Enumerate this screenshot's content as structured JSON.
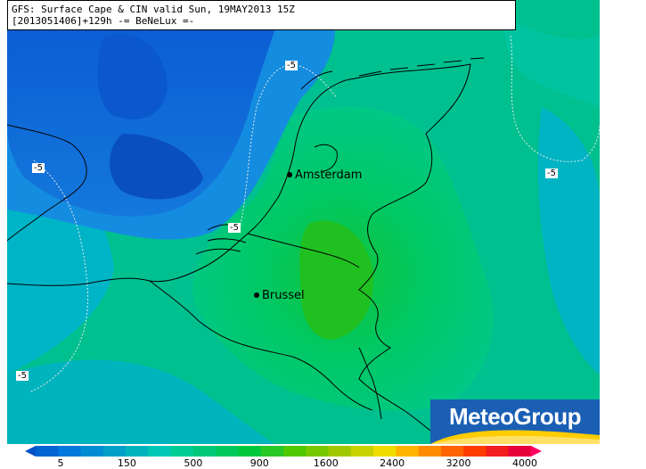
{
  "title": {
    "line1": "GFS: Surface Cape & CIN valid Sun, 19MAY2013 15Z",
    "line2": "[2013051406]+129h  -= BeNeLux =-"
  },
  "cities": [
    {
      "name": "Amsterdam"
    },
    {
      "name": "Brussel"
    }
  ],
  "contour_labels": [
    "-5",
    "-5",
    "-5",
    "-5",
    "-5"
  ],
  "brand": {
    "name": "MeteoGroup"
  },
  "colorbar": {
    "tick_labels": [
      "5",
      "150",
      "500",
      "900",
      "1600",
      "2400",
      "3200",
      "4000"
    ],
    "colors": [
      "#0050c8",
      "#0064d2",
      "#0078dc",
      "#008cd2",
      "#00a0c8",
      "#00b4be",
      "#00c8b4",
      "#00cc96",
      "#00c878",
      "#00c85a",
      "#00c83c",
      "#28c828",
      "#50c800",
      "#78c800",
      "#a0c800",
      "#c8d200",
      "#f0dc00",
      "#ffb400",
      "#ff8c00",
      "#ff6400",
      "#ff3c00",
      "#f01e1e",
      "#e6003c",
      "#ff0064"
    ]
  },
  "colors": {
    "sea_deep": "#0a50c8",
    "sea_mid": "#1478dc",
    "sea_light": "#00aad2",
    "land_low": "#00c88c",
    "land_mid": "#00c864",
    "land_high": "#14c832",
    "brand_blue": "#1a5fb4"
  }
}
